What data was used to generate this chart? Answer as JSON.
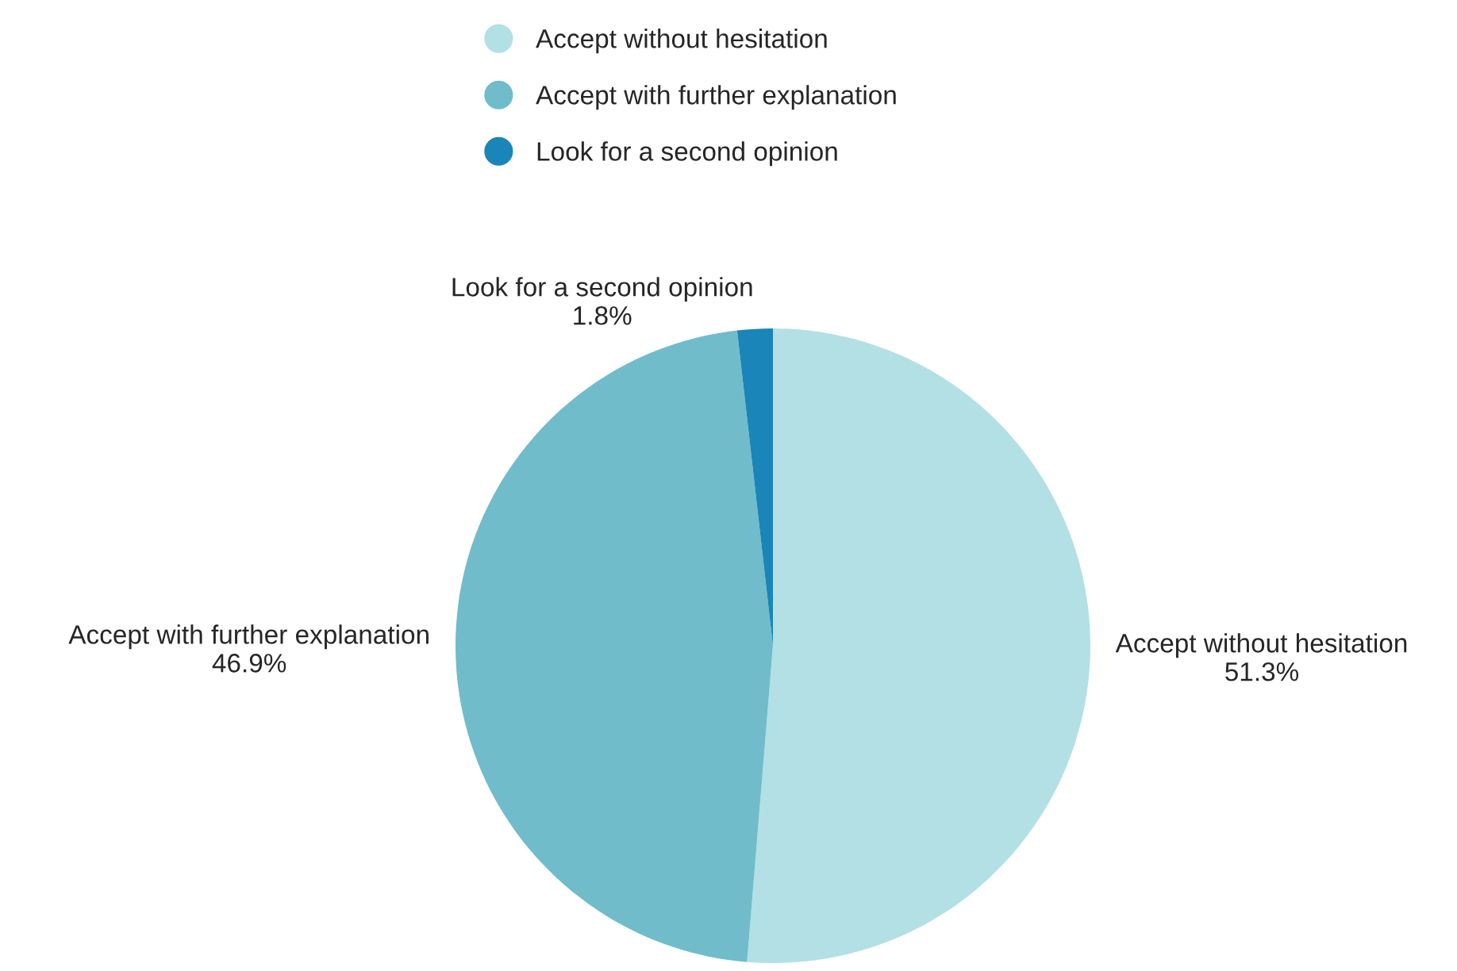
{
  "chart_data": {
    "type": "pie",
    "categories": [
      "Accept without hesitation",
      "Accept with further explanation",
      "Look for a second opinion"
    ],
    "values": [
      51.3,
      46.9,
      1.8
    ],
    "value_labels": [
      "51.3%",
      "46.9%",
      "1.8%"
    ],
    "colors": [
      "#b3e0e4",
      "#70bccb",
      "#1a85b8"
    ],
    "legend": "top"
  }
}
